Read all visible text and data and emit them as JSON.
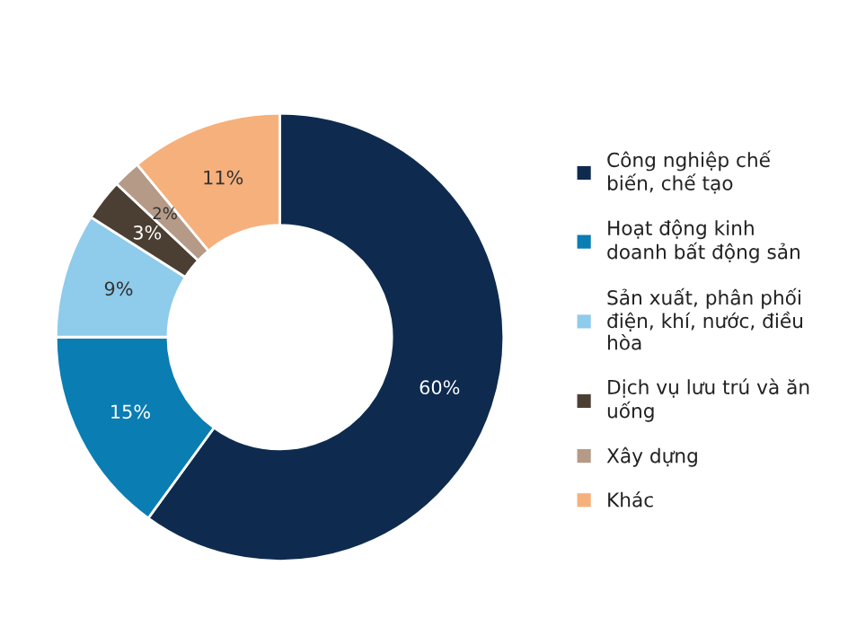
{
  "chart_data": {
    "type": "donut",
    "categories": [
      "Công nghiệp chế\nbiến, chế tạo",
      "Hoạt động kinh\ndoanh bất động sản",
      "Sản xuất, phân phối\nđiện, khí, nước, điều\nhòa",
      "Dịch vụ lưu trú và ăn\nuống",
      "Xây dựng",
      "Khác"
    ],
    "values": [
      60,
      15,
      9,
      3,
      2,
      11
    ],
    "colors": [
      "#0e2b4f",
      "#0a7db3",
      "#8fcbea",
      "#4b3f33",
      "#b59a88",
      "#f6b07c"
    ],
    "value_labels": [
      "60%",
      "15%",
      "9%",
      "3%",
      "2%",
      "11%"
    ],
    "legend": "right"
  }
}
